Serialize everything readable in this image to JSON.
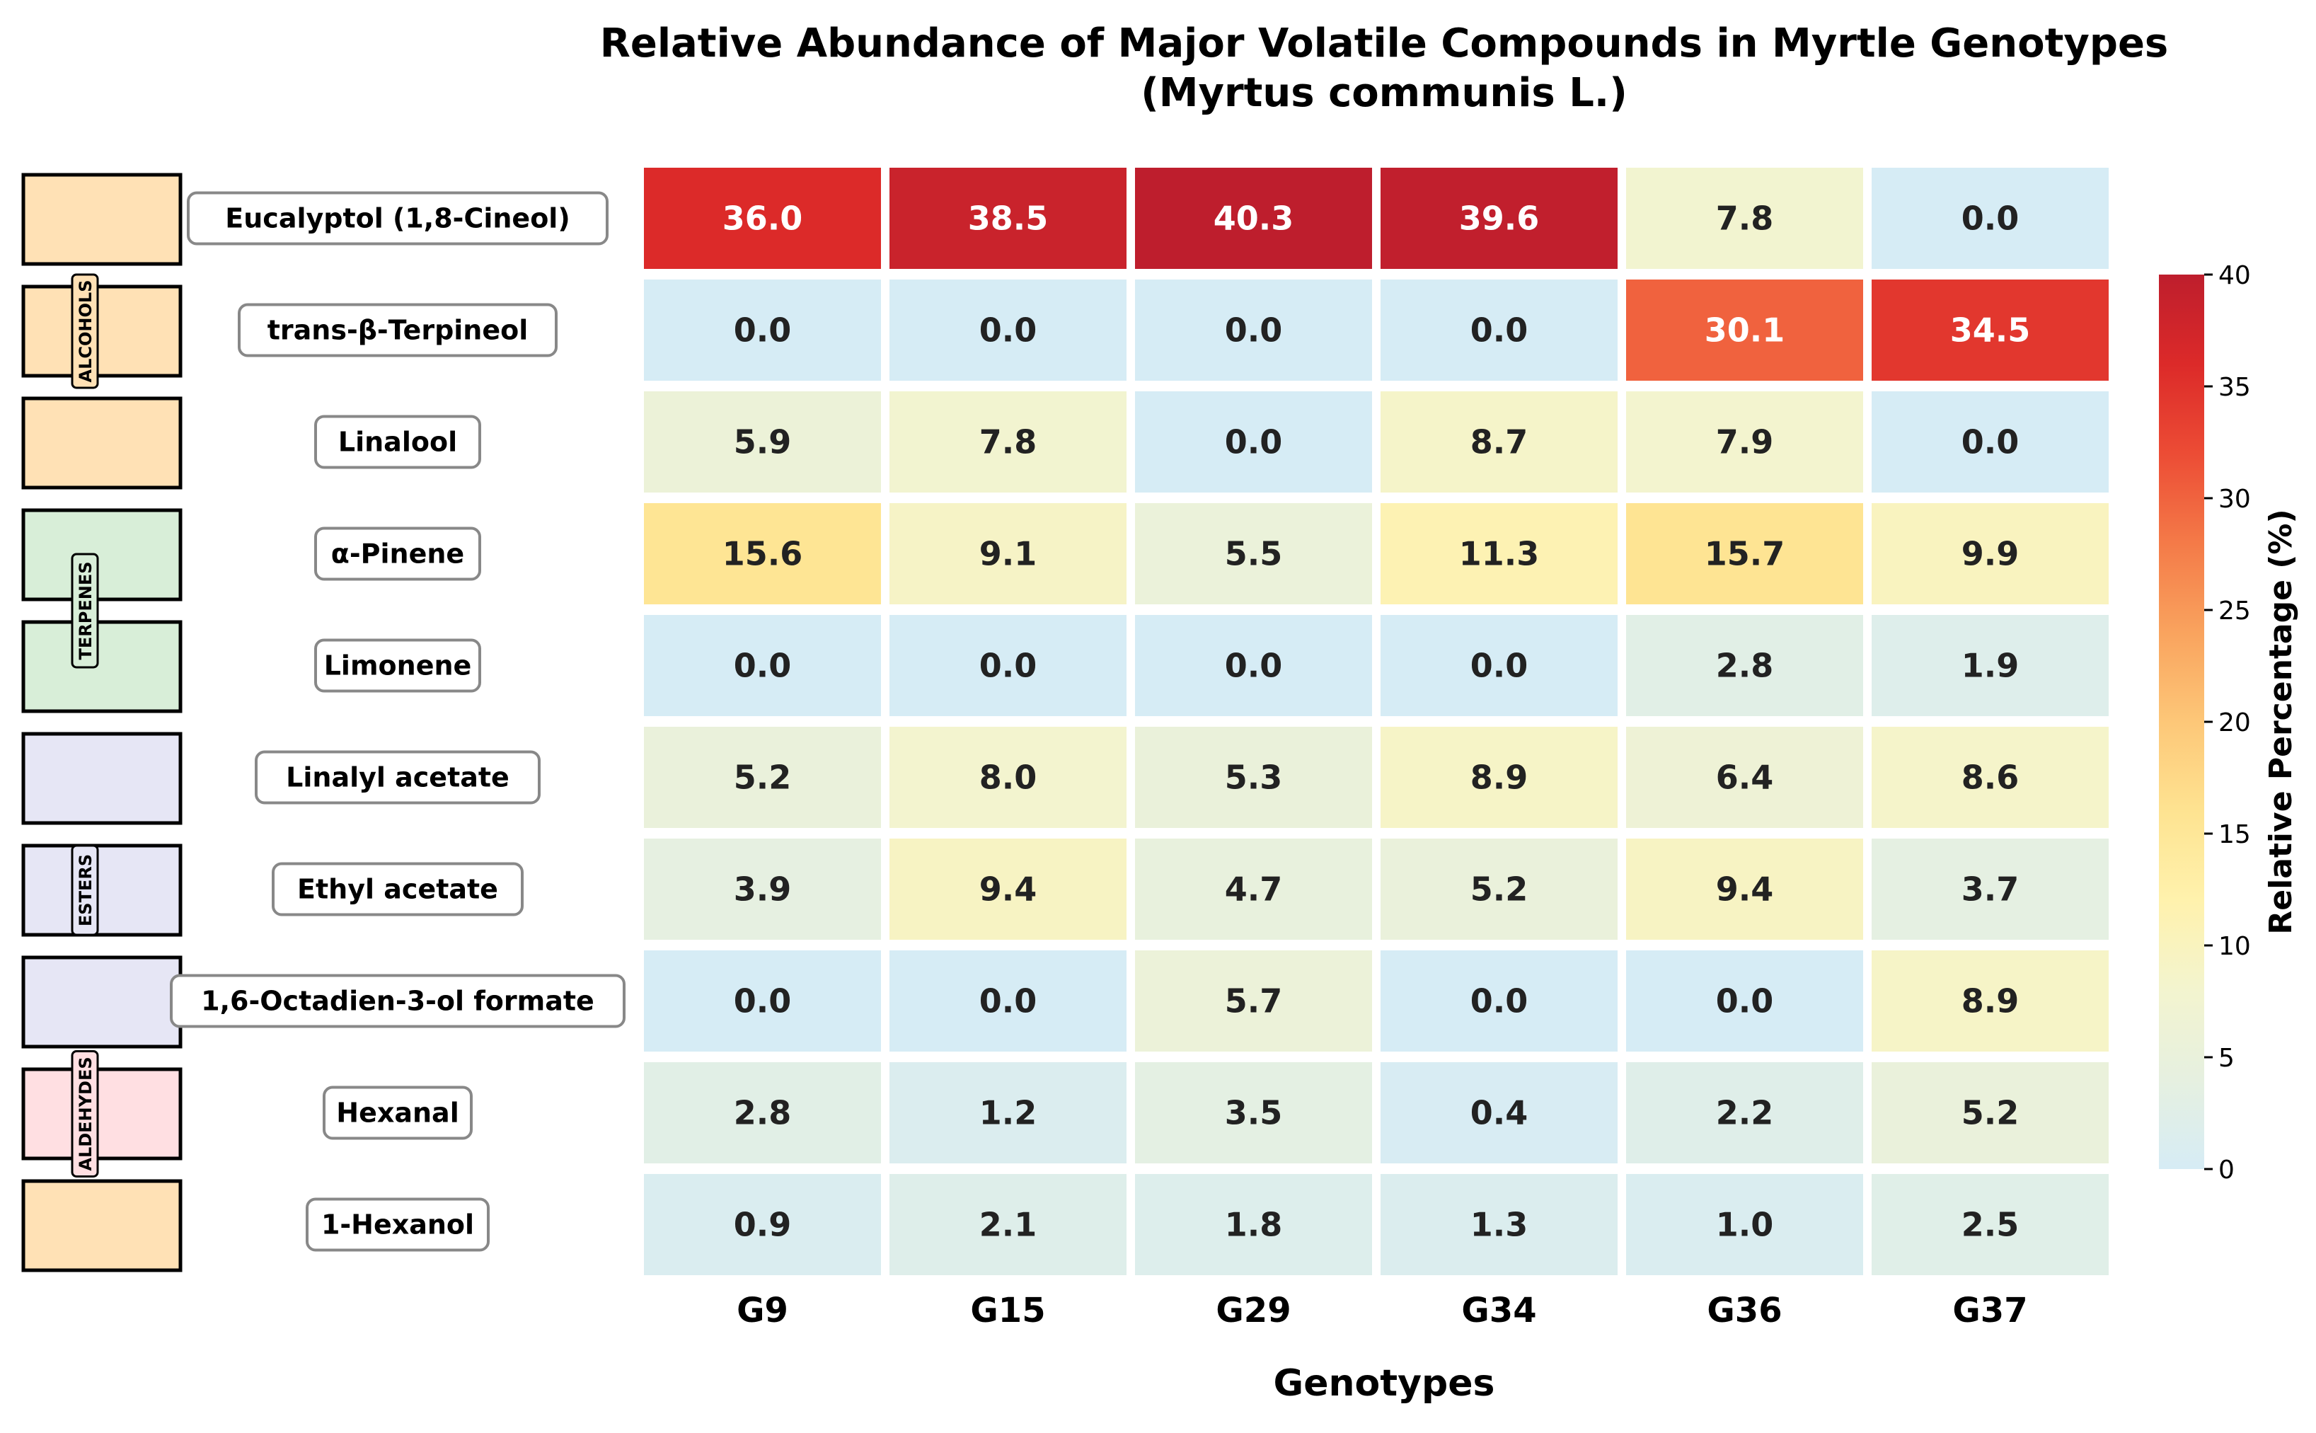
{
  "chart_data": {
    "type": "heatmap",
    "title": "Relative Abundance of Major Volatile Compounds in Myrtle Genotypes",
    "subtitle": "(Myrtus communis L.)",
    "xlabel": "Genotypes",
    "columns": [
      "G9",
      "G15",
      "G29",
      "G34",
      "G36",
      "G37"
    ],
    "rows": [
      "Eucalyptol (1,8-Cineol)",
      "trans-β-Terpineol",
      "Linalool",
      "α-Pinene",
      "Limonene",
      "Linalyl acetate",
      "Ethyl acetate",
      "1,6-Octadien-3-ol formate",
      "Hexanal",
      "1-Hexanol"
    ],
    "values": [
      [
        36.0,
        38.5,
        40.3,
        39.6,
        7.8,
        0.0
      ],
      [
        0.0,
        0.0,
        0.0,
        0.0,
        30.1,
        34.5
      ],
      [
        5.9,
        7.8,
        0.0,
        8.7,
        7.9,
        0.0
      ],
      [
        15.6,
        9.1,
        5.5,
        11.3,
        15.7,
        9.9
      ],
      [
        0.0,
        0.0,
        0.0,
        0.0,
        2.8,
        1.9
      ],
      [
        5.2,
        8.0,
        5.3,
        8.9,
        6.4,
        8.6
      ],
      [
        3.9,
        9.4,
        4.7,
        5.2,
        9.4,
        3.7
      ],
      [
        0.0,
        0.0,
        5.7,
        0.0,
        0.0,
        8.9
      ],
      [
        2.8,
        1.2,
        3.5,
        0.4,
        2.2,
        5.2
      ],
      [
        0.9,
        2.1,
        1.8,
        1.3,
        1.0,
        2.5
      ]
    ],
    "colorbar": {
      "label": "Relative Percentage (%)",
      "range": [
        0,
        40
      ],
      "ticks": [
        0,
        5,
        10,
        15,
        20,
        25,
        30,
        35,
        40
      ]
    },
    "groups": [
      {
        "label": "ALCOHOLS",
        "rows": [
          0,
          1,
          2
        ],
        "color": "#ffe1b5"
      },
      {
        "label": "TERPENES",
        "rows": [
          3,
          4
        ],
        "color": "#d8eed8"
      },
      {
        "label": "ESTERS",
        "rows": [
          5,
          6,
          7
        ],
        "color": "#e6e6f5"
      },
      {
        "label": "ALDEHYDES",
        "rows": [
          8
        ],
        "color": "#ffdfe2"
      }
    ],
    "row_group_colors": [
      "#ffe1b5",
      "#ffe1b5",
      "#ffe1b5",
      "#d8eed8",
      "#d8eed8",
      "#e6e6f5",
      "#e6e6f5",
      "#e6e6f5",
      "#ffdfe2",
      "#ffe1b5"
    ],
    "colormap": [
      "#d6ecf5",
      "#e6f0e0",
      "#f3f4cf",
      "#fff2ad",
      "#fee391",
      "#fdc778",
      "#f9a35e",
      "#f47a48",
      "#ec4c35",
      "#dc2a29",
      "#be1e2d"
    ]
  }
}
